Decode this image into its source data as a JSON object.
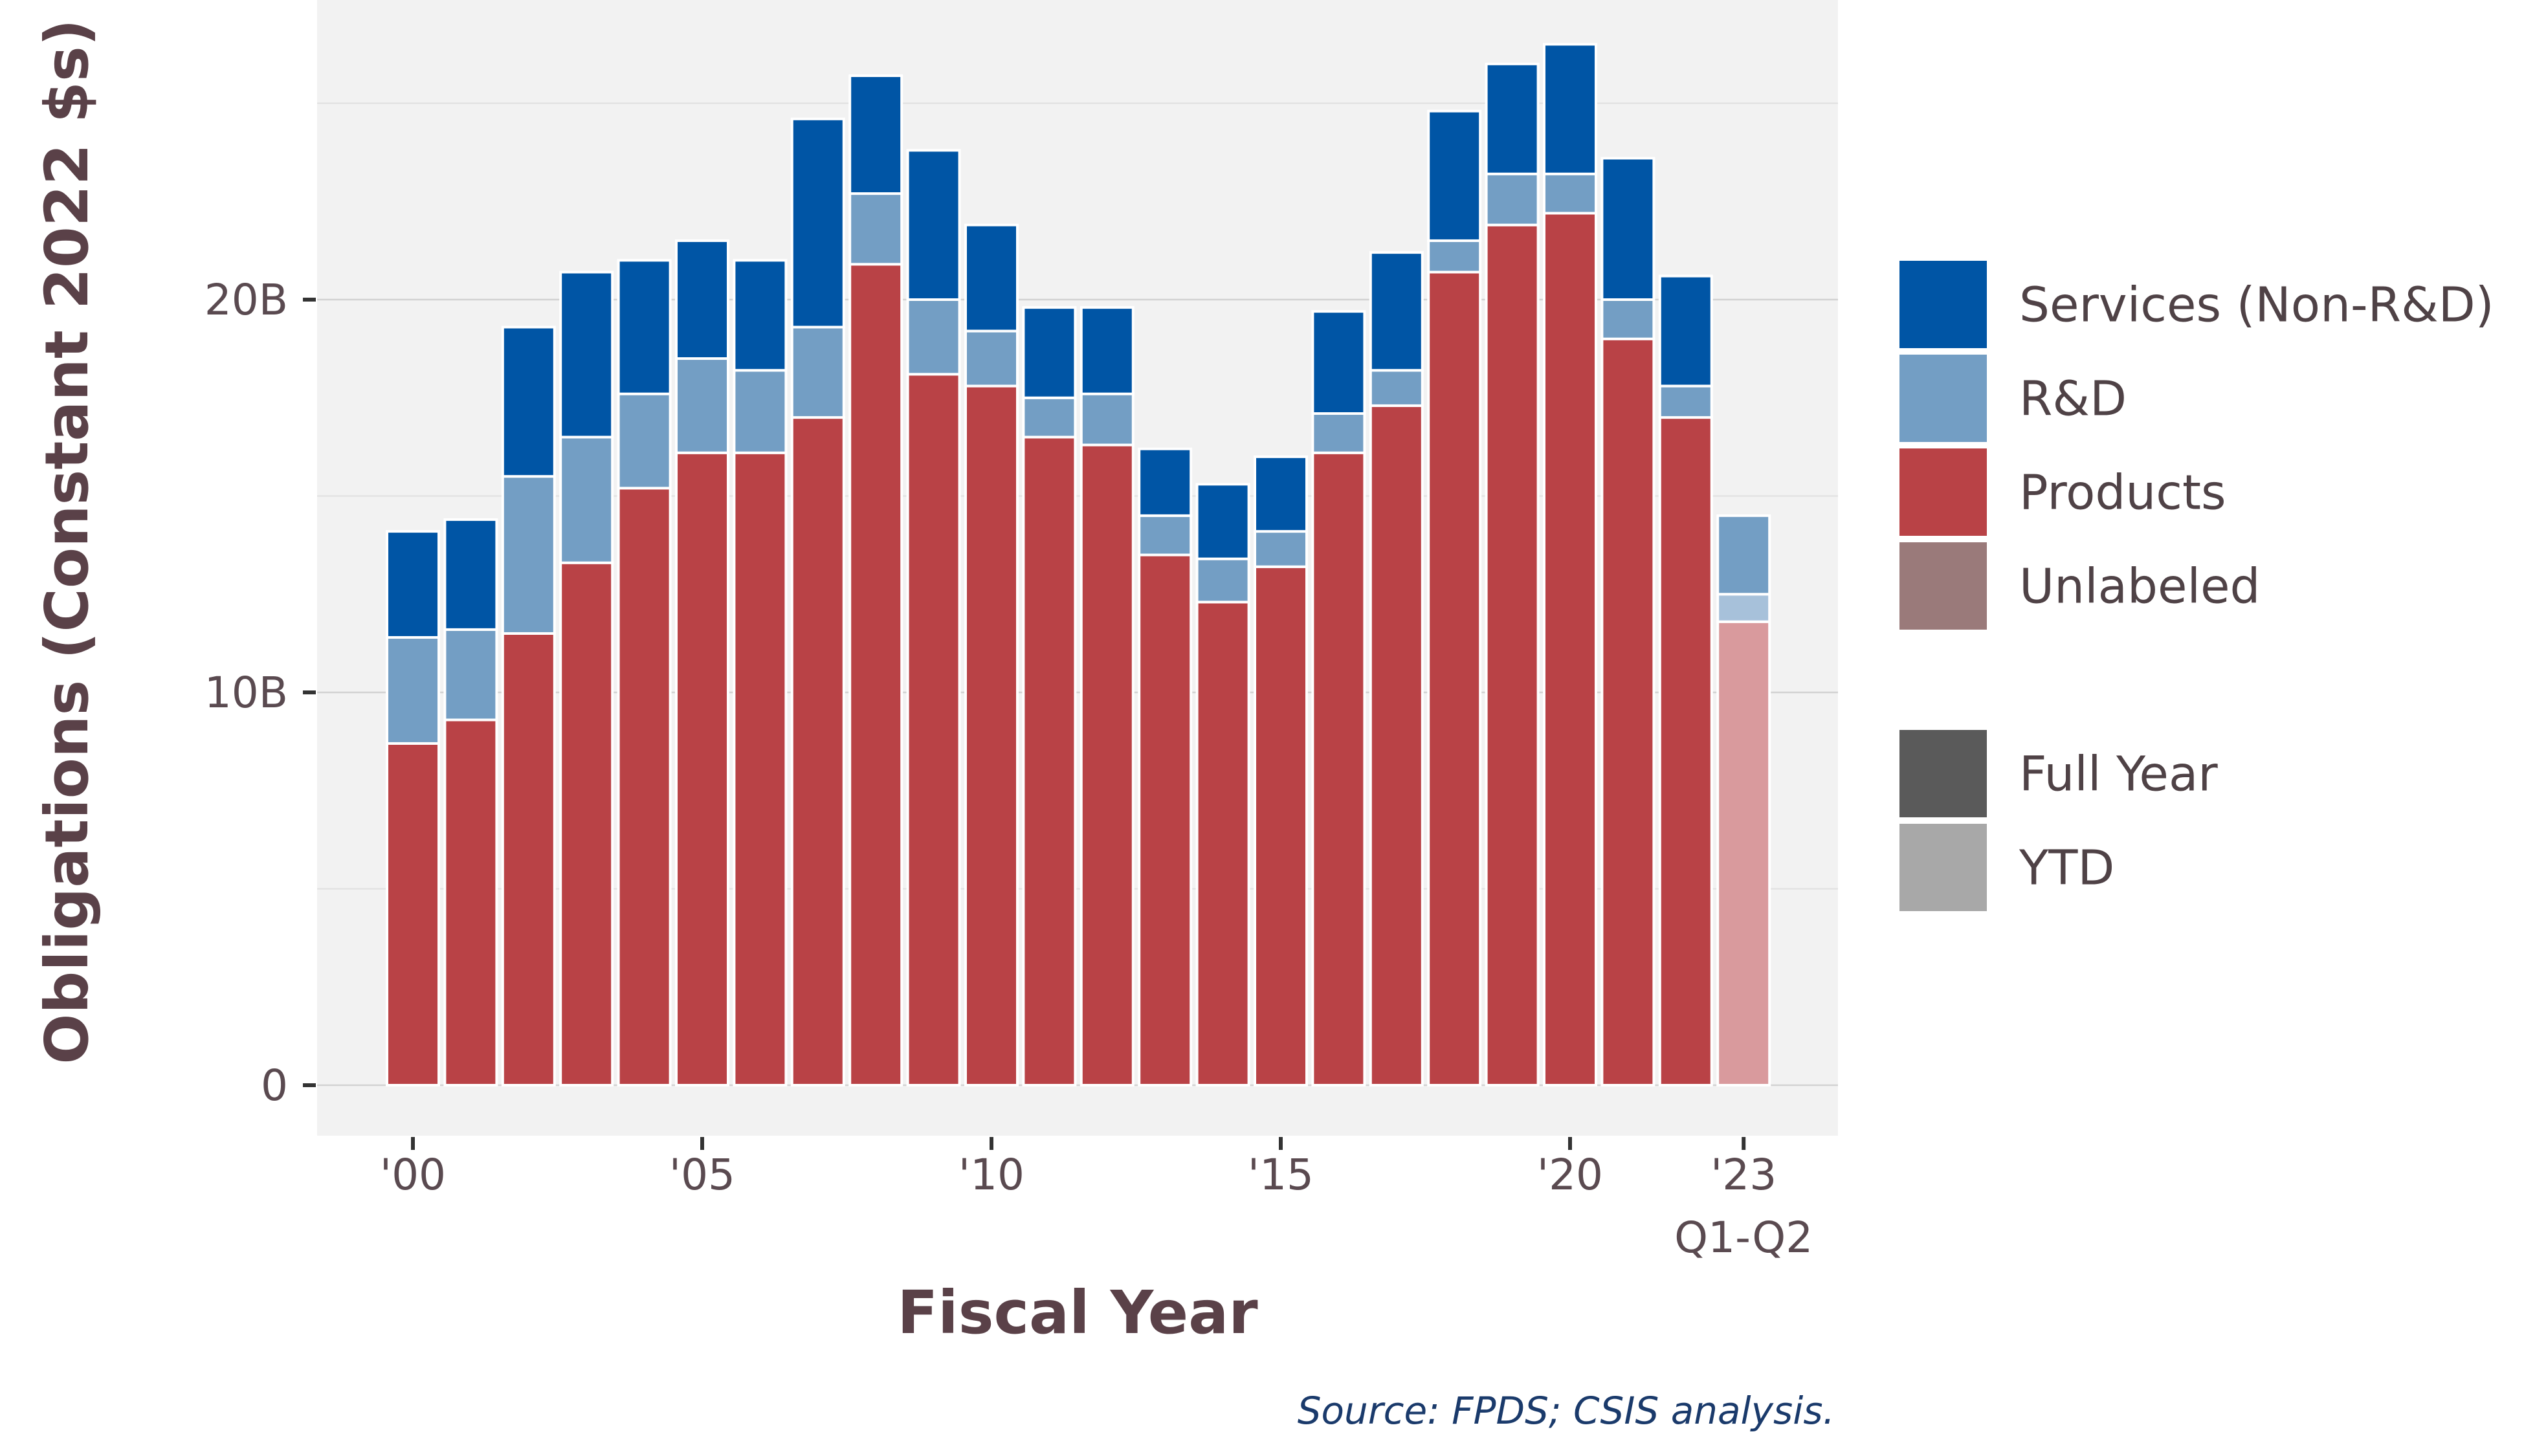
{
  "chart_data": {
    "type": "bar",
    "stacked": true,
    "xlabel": "Fiscal Year",
    "ylabel": "Obligations (Constant 2022 $s)",
    "source": "Source: FPDS; CSIS analysis.",
    "ylim": [
      0,
      26.5
    ],
    "y_ticks": [
      {
        "value": 0,
        "label": "0"
      },
      {
        "value": 10,
        "label": "10B"
      },
      {
        "value": 20,
        "label": "20B"
      }
    ],
    "x_ticks": [
      {
        "year": 2000,
        "label": "'00",
        "sublabel": ""
      },
      {
        "year": 2005,
        "label": "'05",
        "sublabel": ""
      },
      {
        "year": 2010,
        "label": "'10",
        "sublabel": ""
      },
      {
        "year": 2015,
        "label": "'15",
        "sublabel": ""
      },
      {
        "year": 2020,
        "label": "'20",
        "sublabel": ""
      },
      {
        "year": 2023,
        "label": "'23",
        "sublabel": "Q1-Q2"
      }
    ],
    "years": [
      2000,
      2001,
      2002,
      2003,
      2004,
      2005,
      2006,
      2007,
      2008,
      2009,
      2010,
      2011,
      2012,
      2013,
      2014,
      2015,
      2016,
      2017,
      2018,
      2019,
      2020,
      2021,
      2022,
      2023
    ],
    "period": [
      "Full Year",
      "Full Year",
      "Full Year",
      "Full Year",
      "Full Year",
      "Full Year",
      "Full Year",
      "Full Year",
      "Full Year",
      "Full Year",
      "Full Year",
      "Full Year",
      "Full Year",
      "Full Year",
      "Full Year",
      "Full Year",
      "Full Year",
      "Full Year",
      "Full Year",
      "Full Year",
      "Full Year",
      "Full Year",
      "Full Year",
      "YTD"
    ],
    "series": [
      {
        "name": "Products",
        "color": "#b94246",
        "ytd_color": "#d99a9d",
        "values": [
          8.7,
          9.3,
          11.5,
          13.3,
          15.2,
          16.1,
          16.1,
          17.0,
          20.9,
          18.1,
          17.8,
          16.5,
          16.3,
          13.5,
          12.3,
          13.2,
          16.1,
          17.3,
          20.7,
          21.9,
          22.2,
          19.0,
          17.0,
          11.8
        ]
      },
      {
        "name": "R&D",
        "color": "#739ec4",
        "ytd_color": "#a7c1da",
        "values": [
          2.7,
          2.3,
          4.0,
          3.2,
          2.4,
          2.4,
          2.1,
          2.3,
          1.8,
          1.9,
          1.4,
          1.0,
          1.3,
          1.0,
          1.1,
          0.9,
          1.0,
          0.9,
          0.8,
          1.3,
          1.0,
          1.0,
          0.8,
          0.7
        ]
      },
      {
        "name": "Services (Non-R&D)",
        "color": "#0055a5",
        "ytd_color": "#739ec4",
        "values": [
          2.7,
          2.8,
          3.8,
          4.2,
          3.4,
          3.0,
          2.8,
          5.3,
          3.0,
          3.8,
          2.7,
          2.3,
          2.2,
          1.7,
          1.9,
          1.9,
          2.6,
          3.0,
          3.3,
          2.8,
          3.3,
          3.6,
          2.8,
          2.0
        ]
      },
      {
        "name": "Unlabeled",
        "color": "#9a7a7a",
        "ytd_color": "#c4aeae",
        "values": [
          0,
          0,
          0,
          0,
          0,
          0,
          0,
          0,
          0,
          0,
          0,
          0,
          0,
          0,
          0,
          0,
          0,
          0,
          0,
          0,
          0,
          0,
          0,
          0
        ]
      }
    ],
    "legend": {
      "placement": "right",
      "categories": [
        {
          "label": "Services (Non-R&D)",
          "color": "#0055a5"
        },
        {
          "label": "R&D",
          "color": "#739ec4"
        },
        {
          "label": "Products",
          "color": "#b94246"
        },
        {
          "label": "Unlabeled",
          "color": "#9a7a7a"
        }
      ],
      "periods": [
        {
          "label": "Full Year",
          "color": "#5a5a5a"
        },
        {
          "label": "YTD",
          "color": "#a8a8a8"
        }
      ]
    },
    "grid": true,
    "panel_color": "#f2f2f2"
  }
}
